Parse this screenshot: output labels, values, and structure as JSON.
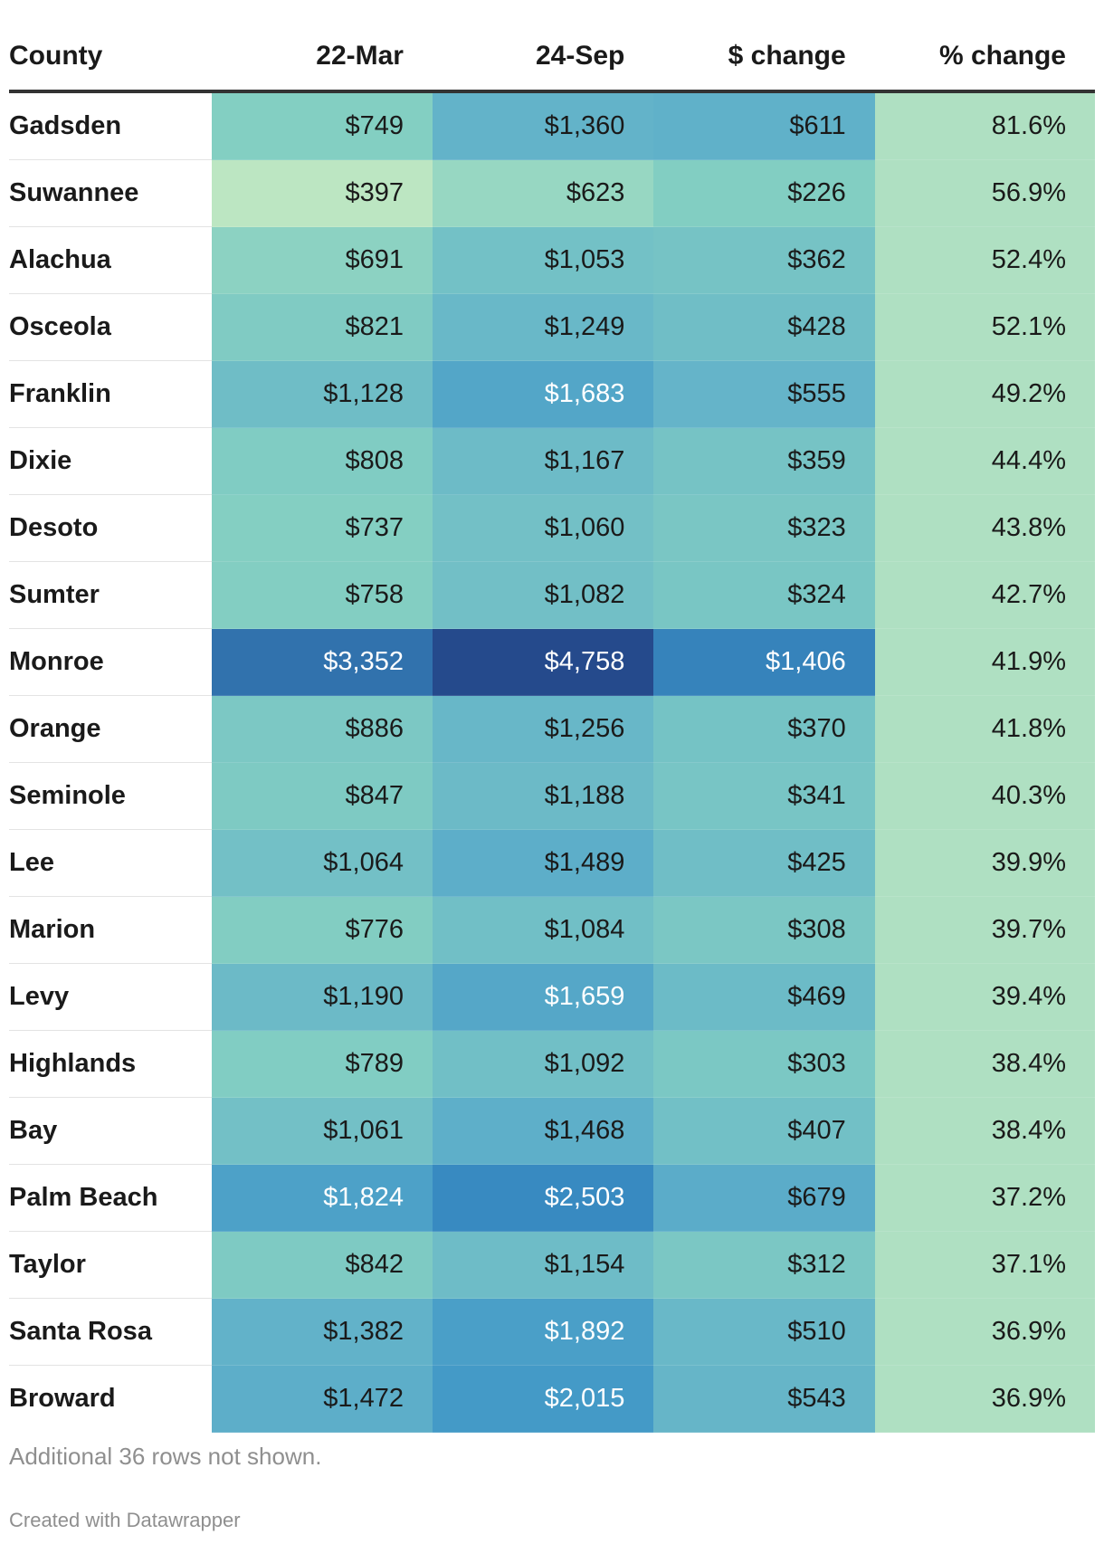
{
  "chart_data": {
    "type": "table",
    "columns": [
      "County",
      "22-Mar",
      "24-Sep",
      "$ change",
      "% change"
    ],
    "rows": [
      {
        "county": "Gadsden",
        "mar22": "$749",
        "sep24": "$1,360",
        "dollar_change": "$611",
        "pct_change": "81.6%"
      },
      {
        "county": "Suwannee",
        "mar22": "$397",
        "sep24": "$623",
        "dollar_change": "$226",
        "pct_change": "56.9%"
      },
      {
        "county": "Alachua",
        "mar22": "$691",
        "sep24": "$1,053",
        "dollar_change": "$362",
        "pct_change": "52.4%"
      },
      {
        "county": "Osceola",
        "mar22": "$821",
        "sep24": "$1,249",
        "dollar_change": "$428",
        "pct_change": "52.1%"
      },
      {
        "county": "Franklin",
        "mar22": "$1,128",
        "sep24": "$1,683",
        "dollar_change": "$555",
        "pct_change": "49.2%"
      },
      {
        "county": "Dixie",
        "mar22": "$808",
        "sep24": "$1,167",
        "dollar_change": "$359",
        "pct_change": "44.4%"
      },
      {
        "county": "Desoto",
        "mar22": "$737",
        "sep24": "$1,060",
        "dollar_change": "$323",
        "pct_change": "43.8%"
      },
      {
        "county": "Sumter",
        "mar22": "$758",
        "sep24": "$1,082",
        "dollar_change": "$324",
        "pct_change": "42.7%"
      },
      {
        "county": "Monroe",
        "mar22": "$3,352",
        "sep24": "$4,758",
        "dollar_change": "$1,406",
        "pct_change": "41.9%"
      },
      {
        "county": "Orange",
        "mar22": "$886",
        "sep24": "$1,256",
        "dollar_change": "$370",
        "pct_change": "41.8%"
      },
      {
        "county": "Seminole",
        "mar22": "$847",
        "sep24": "$1,188",
        "dollar_change": "$341",
        "pct_change": "40.3%"
      },
      {
        "county": "Lee",
        "mar22": "$1,064",
        "sep24": "$1,489",
        "dollar_change": "$425",
        "pct_change": "39.9%"
      },
      {
        "county": "Marion",
        "mar22": "$776",
        "sep24": "$1,084",
        "dollar_change": "$308",
        "pct_change": "39.7%"
      },
      {
        "county": "Levy",
        "mar22": "$1,190",
        "sep24": "$1,659",
        "dollar_change": "$469",
        "pct_change": "39.4%"
      },
      {
        "county": "Highlands",
        "mar22": "$789",
        "sep24": "$1,092",
        "dollar_change": "$303",
        "pct_change": "38.4%"
      },
      {
        "county": "Bay",
        "mar22": "$1,061",
        "sep24": "$1,468",
        "dollar_change": "$407",
        "pct_change": "38.4%"
      },
      {
        "county": "Palm Beach",
        "mar22": "$1,824",
        "sep24": "$2,503",
        "dollar_change": "$679",
        "pct_change": "37.2%"
      },
      {
        "county": "Taylor",
        "mar22": "$842",
        "sep24": "$1,154",
        "dollar_change": "$312",
        "pct_change": "37.1%"
      },
      {
        "county": "Santa Rosa",
        "mar22": "$1,382",
        "sep24": "$1,892",
        "dollar_change": "$510",
        "pct_change": "36.9%"
      },
      {
        "county": "Broward",
        "mar22": "$1,472",
        "sep24": "$2,015",
        "dollar_change": "$543",
        "pct_change": "36.9%"
      }
    ],
    "heatmap_colors": {
      "low": "#bde6c2",
      "mid_low": "#84cfc2",
      "mid": "#63b3c9",
      "high": "#3a92c7",
      "max": "#254a8c"
    },
    "notes": "Additional 36 rows not shown.",
    "credit": "Created with Datawrapper"
  }
}
